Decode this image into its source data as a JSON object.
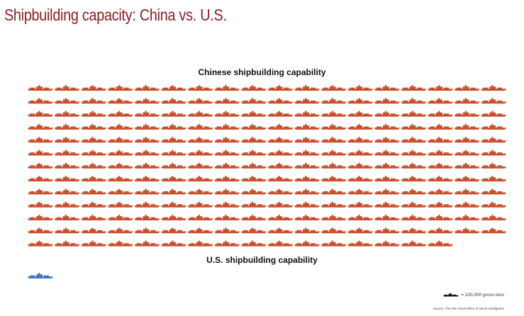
{
  "header": {
    "title": "Shipbuilding capacity: China vs. U.S."
  },
  "chart_data": {
    "type": "pictogram",
    "title": "Shipbuilding capacity: China vs. U.S.",
    "unit": "= 100,000 gross tons",
    "series": [
      {
        "name": "Chinese shipbuilding capability",
        "label": "Chinese shipbuilding capability",
        "value": 232,
        "color": "#c8502e"
      },
      {
        "name": "U.S. shipbuilding capability",
        "label": "U.S. shipbuilding capability",
        "value": 1,
        "color": "#3f78b8"
      }
    ],
    "legend_icon_color": "#111111",
    "source": "Source: The War Zone/Office of Naval Intelligence"
  }
}
